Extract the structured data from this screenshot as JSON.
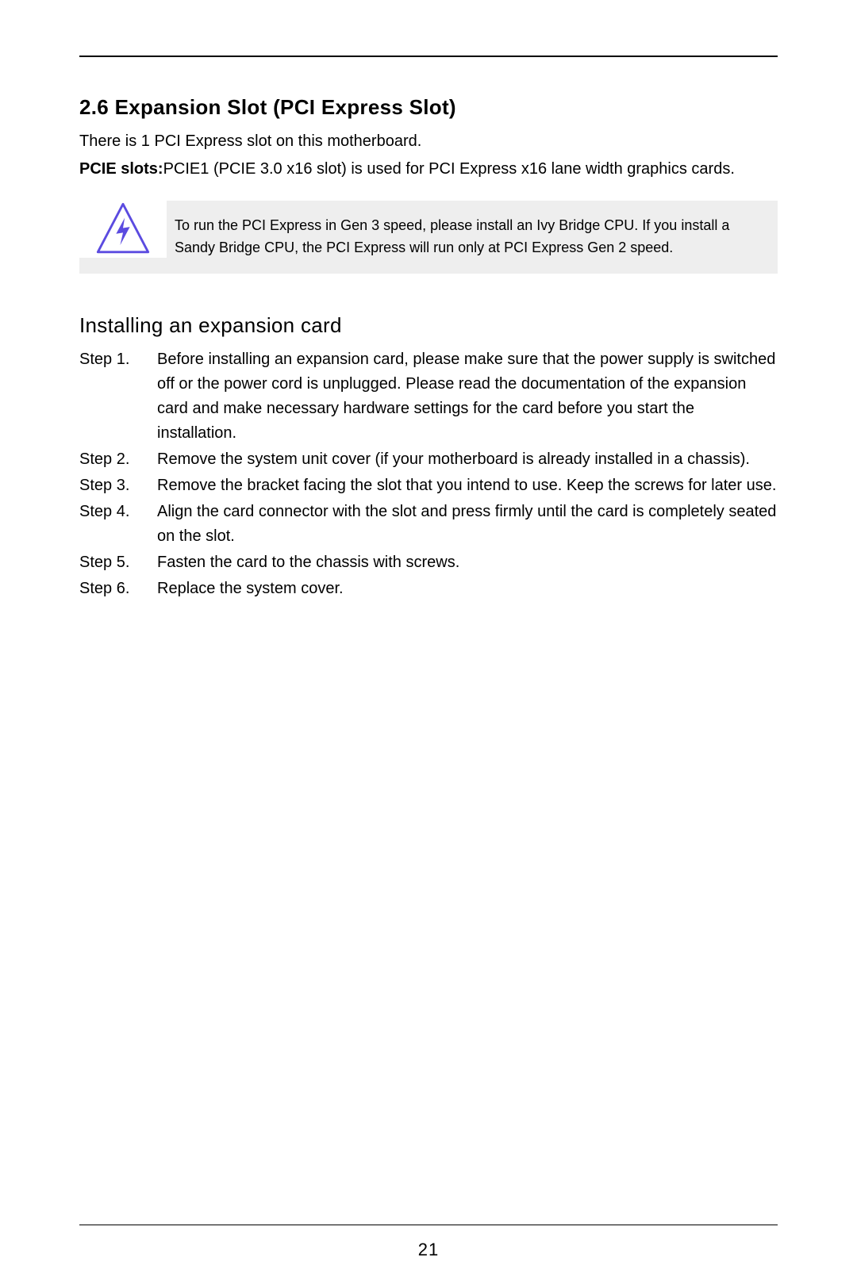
{
  "heading": "2.6  Expansion Slot (PCI Express Slot)",
  "intro": "There is 1 PCI Express slot on this motherboard.",
  "pcie": {
    "label": "PCIE slots:",
    "desc": "PCIE1 (PCIE 3.0 x16 slot) is used for PCI Express x16 lane width graphics cards."
  },
  "callout": {
    "text": "To run the PCI Express in Gen 3 speed, please install an Ivy Bridge CPU. If you install a Sandy Bridge CPU, the PCI Express will run only at PCI Express Gen 2 speed.",
    "icon_stroke": "#5b4be0",
    "icon_fill": "#ffffff",
    "bg": "#eeeeee"
  },
  "subheading": "Installing an expansion card",
  "steps": [
    {
      "label": "Step 1.",
      "text": "Before installing an expansion card, please make sure that the power supply is switched off or the power cord is unplugged. Please read the documentation of the expansion card and make necessary hardware settings for the card before you start the installation."
    },
    {
      "label": "Step 2.",
      "text": "Remove the system unit cover (if your motherboard is already installed in a chassis)."
    },
    {
      "label": "Step 3.",
      "text": "Remove the bracket facing the slot that you intend to use. Keep the screws for later use."
    },
    {
      "label": "Step 4.",
      "text": "Align the card connector with the slot and press firmly until the card is completely seated on the slot."
    },
    {
      "label": "Step 5.",
      "text": "Fasten the card to the chassis with screws."
    },
    {
      "label": "Step 6.",
      "text": "Replace the system cover."
    }
  ],
  "page_number": "21"
}
